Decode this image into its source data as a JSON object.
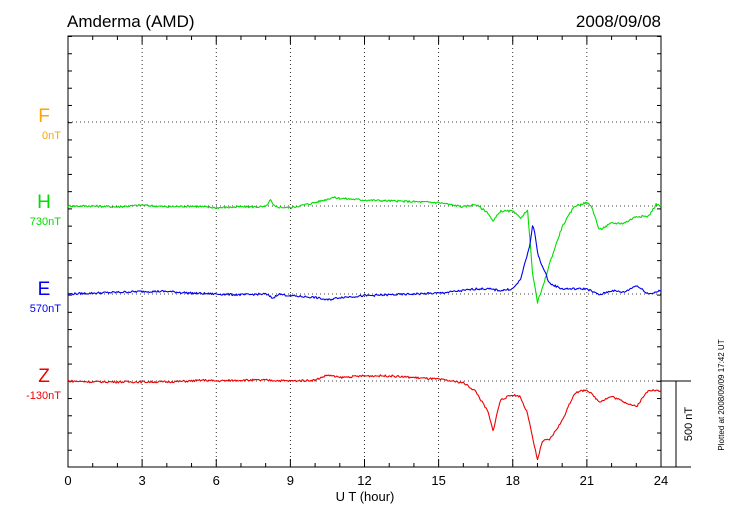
{
  "station": "Amderma (AMD)",
  "date": "2008/09/08",
  "footer": "Plotted at 2008/09/09 17:42 UT",
  "chart_data": {
    "type": "line",
    "xlabel": "U T (hour)",
    "xlim": [
      0,
      24
    ],
    "x_ticks": [
      0,
      3,
      6,
      9,
      12,
      15,
      18,
      21,
      24
    ],
    "grid": true,
    "scale_bar": {
      "label": "500 nT",
      "value": 500
    },
    "components": [
      {
        "name": "F",
        "baseline": "0nT",
        "color": "#FFA500",
        "values": []
      },
      {
        "name": "H",
        "baseline": "730nT",
        "color": "#00DD00",
        "x": [
          0,
          1,
          2,
          3,
          4,
          5,
          6,
          7,
          8,
          8.2,
          8.3,
          8.4,
          9,
          10,
          10.5,
          10.7,
          11,
          12,
          13,
          14,
          15,
          16,
          16.5,
          17,
          17.2,
          17.5,
          18,
          18.3,
          18.5,
          18.6,
          18.7,
          18.8,
          19,
          19.2,
          19.5,
          20,
          20.5,
          21,
          21.2,
          21.5,
          22,
          22.5,
          23,
          23.5,
          23.8,
          24
        ],
        "values": [
          0,
          0,
          -5,
          5,
          -5,
          0,
          -10,
          -5,
          -5,
          35,
          5,
          -5,
          -10,
          20,
          40,
          50,
          45,
          35,
          30,
          25,
          20,
          -5,
          10,
          -40,
          -90,
          -30,
          -30,
          -70,
          -40,
          -30,
          -200,
          -390,
          -560,
          -480,
          -330,
          -120,
          0,
          20,
          -5,
          -140,
          -100,
          -100,
          -60,
          -60,
          10,
          0
        ]
      },
      {
        "name": "E",
        "baseline": "570nT",
        "color": "#0000EE",
        "x": [
          0,
          1,
          2,
          3,
          4,
          5,
          6,
          7,
          8,
          8.3,
          8.5,
          9,
          10,
          10.5,
          11,
          12,
          13,
          14,
          15,
          16,
          16.5,
          17,
          17.5,
          18,
          18.3,
          18.5,
          18.7,
          18.8,
          18.9,
          19,
          19.2,
          19.5,
          20,
          21,
          21.5,
          22,
          22.5,
          23,
          23.5,
          24
        ],
        "values": [
          0,
          5,
          10,
          15,
          15,
          5,
          0,
          -5,
          0,
          -25,
          0,
          -10,
          -20,
          -35,
          -20,
          -10,
          -5,
          0,
          5,
          20,
          30,
          30,
          20,
          30,
          80,
          180,
          290,
          400,
          350,
          240,
          160,
          60,
          30,
          30,
          -5,
          20,
          10,
          50,
          0,
          20
        ]
      },
      {
        "name": "Z",
        "baseline": "-130nT",
        "color": "#EE0000",
        "x": [
          0,
          1,
          2,
          3,
          4,
          5,
          5.5,
          6,
          7,
          8,
          9,
          10,
          10.5,
          11,
          12,
          13,
          14,
          15,
          16,
          16.5,
          17,
          17.2,
          17.5,
          18,
          18.3,
          18.6,
          18.8,
          19,
          19.2,
          19.5,
          20,
          20.5,
          21,
          21.5,
          22,
          22.5,
          23,
          23.5,
          24
        ],
        "values": [
          0,
          -5,
          -5,
          -5,
          -5,
          0,
          5,
          0,
          5,
          5,
          0,
          5,
          35,
          20,
          30,
          30,
          20,
          10,
          -10,
          -60,
          -180,
          -290,
          -110,
          -80,
          -90,
          -190,
          -330,
          -460,
          -350,
          -340,
          -230,
          -70,
          -50,
          -120,
          -90,
          -120,
          -150,
          -50,
          -60
        ]
      }
    ]
  }
}
